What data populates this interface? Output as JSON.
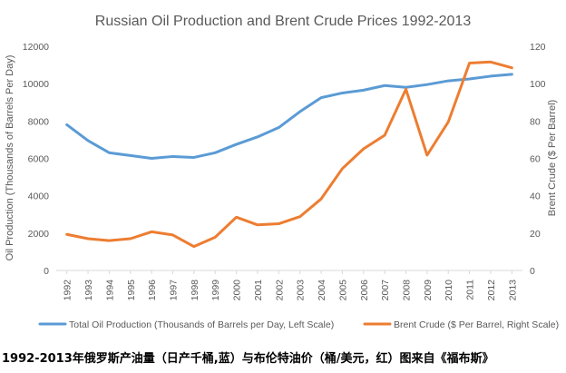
{
  "caption": "1992-2013年俄罗斯产油量（日产千桶,蓝）与布伦特油价（桶/美元，红）图来自《福布斯》",
  "colors": {
    "oil_production": "#5B9BD5",
    "brent_crude": "#ED7D31",
    "axis": "#D9D9D9",
    "text": "#595959"
  },
  "chart_data": {
    "type": "line",
    "title": "Russian Oil Production and Brent Crude Prices 1992-2013",
    "categories": [
      "1992",
      "1993",
      "1994",
      "1995",
      "1996",
      "1997",
      "1998",
      "1999",
      "2000",
      "2001",
      "2002",
      "2003",
      "2004",
      "2005",
      "2006",
      "2007",
      "2008",
      "2009",
      "2010",
      "2011",
      "2012",
      "2013"
    ],
    "y_left": {
      "label": "Oil Production (Thousands of Barrels Per Day)",
      "range": [
        0,
        12000
      ],
      "ticks": [
        "0",
        "2000",
        "4000",
        "6000",
        "8000",
        "10000",
        "12000"
      ]
    },
    "y_right": {
      "label": "Brent Crude ($ Per Barrel)",
      "range": [
        0,
        120
      ],
      "ticks": [
        "0",
        "20",
        "40",
        "60",
        "80",
        "100",
        "120"
      ]
    },
    "series": [
      {
        "name": "Total Oil Production (Thousands of Barrels per Day, Left Scale)",
        "axis": "left",
        "values": [
          7800,
          6950,
          6300,
          6150,
          6000,
          6100,
          6050,
          6300,
          6750,
          7150,
          7650,
          8500,
          9250,
          9500,
          9650,
          9900,
          9800,
          9950,
          10150,
          10250,
          10400,
          10500
        ]
      },
      {
        "name": "Brent Crude ($ Per Barrel, Right Scale)",
        "axis": "right",
        "values": [
          19.3,
          17,
          16,
          17,
          20.7,
          19,
          12.8,
          17.8,
          28.5,
          24.4,
          25,
          28.8,
          38.3,
          54.5,
          65.1,
          72.4,
          97,
          61.7,
          79.5,
          111,
          111.6,
          108.5
        ]
      }
    ],
    "legend_position": "bottom",
    "grid": false
  }
}
